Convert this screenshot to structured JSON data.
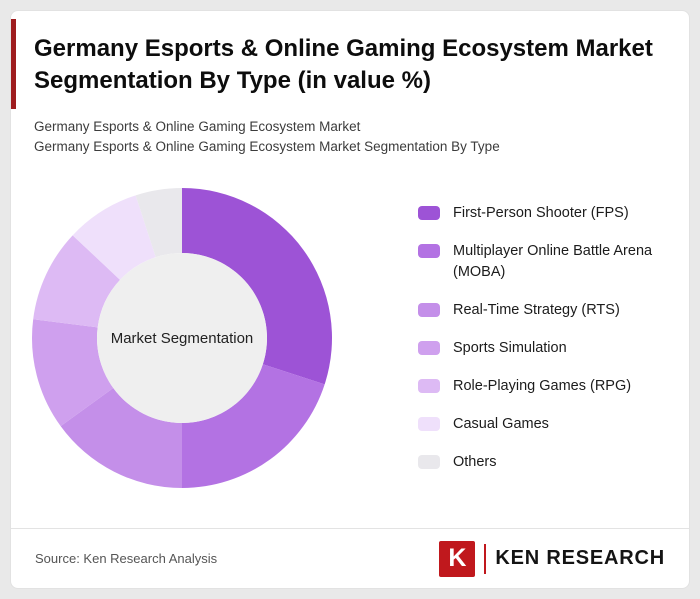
{
  "header": {
    "title": "Germany Esports & Online Gaming Ecosystem Market Segmentation By Type (in value %)",
    "subtitle1": "Germany Esports & Online Gaming Ecosystem Market",
    "subtitle2": "Germany Esports & Online Gaming Ecosystem Market Segmentation By Type"
  },
  "chart_data": {
    "type": "pie",
    "donut": true,
    "title": "Germany Esports & Online Gaming Ecosystem Market Segmentation By Type (in value %)",
    "center_label": "Market Segmentation",
    "center_fill": "#efefef",
    "start_angle_deg": 0,
    "direction": "clockwise",
    "legend_position": "right",
    "values_unit": "%",
    "segments": [
      {
        "label": "First-Person Shooter (FPS)",
        "value": 30,
        "color": "#9d53d6"
      },
      {
        "label": "Multiplayer Online Battle Arena (MOBA)",
        "value": 20,
        "color": "#b372e3"
      },
      {
        "label": "Real-Time Strategy (RTS)",
        "value": 15,
        "color": "#c48fe9"
      },
      {
        "label": "Sports Simulation",
        "value": 12,
        "color": "#cfa0ee"
      },
      {
        "label": "Role-Playing Games (RPG)",
        "value": 10,
        "color": "#ddbaf4"
      },
      {
        "label": "Casual Games",
        "value": 8,
        "color": "#efe0fb"
      },
      {
        "label": "Others",
        "value": 5,
        "color": "#e9e8ec"
      }
    ]
  },
  "footer": {
    "source": "Source: Ken Research Analysis",
    "logo_letter": "K",
    "logo_text": "KEN RESEARCH"
  }
}
